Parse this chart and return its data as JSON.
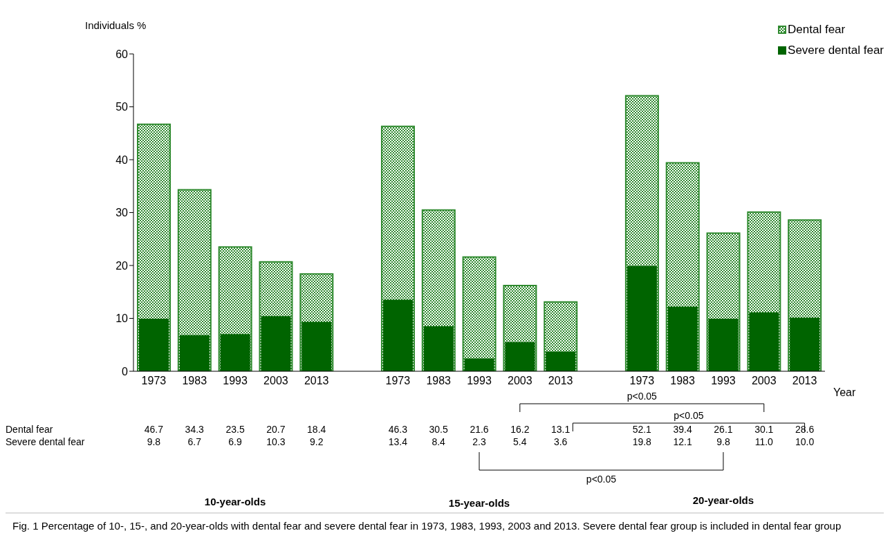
{
  "chart_data": {
    "type": "bar",
    "ylabel": "Individuals %",
    "xlabel": "Year",
    "categories": [
      "1973",
      "1983",
      "1993",
      "2003",
      "2013",
      null,
      "1973",
      "1983",
      "1993",
      "2003",
      "2013",
      null,
      "1973",
      "1983",
      "1993",
      "2003",
      "2013"
    ],
    "series": [
      {
        "name": "Dental fear",
        "color": "#2f8a2f",
        "values": [
          46.7,
          34.3,
          23.5,
          20.7,
          18.4,
          null,
          46.3,
          30.5,
          21.6,
          16.2,
          13.1,
          null,
          52.1,
          39.4,
          26.1,
          30.1,
          28.6
        ],
        "value_labels": [
          "46.7",
          "34.3",
          "23.5",
          "20.7",
          "18.4",
          null,
          "46.3",
          "30.5",
          "21.6",
          "16.2",
          "13.1",
          null,
          "52.1",
          "39.4",
          "26.1",
          "30.1",
          "28.6"
        ]
      },
      {
        "name": "Severe dental fear",
        "color": "#006400",
        "values": [
          9.8,
          6.7,
          6.9,
          10.3,
          9.2,
          null,
          13.4,
          8.4,
          2.3,
          5.4,
          3.6,
          null,
          19.8,
          12.1,
          9.8,
          11.0,
          10.0
        ],
        "value_labels": [
          "9.8",
          "6.7",
          "6.9",
          "10.3",
          "9.2",
          null,
          "13.4",
          "8.4",
          "2.3",
          "5.4",
          "3.6",
          null,
          "19.8",
          "12.1",
          "9.8",
          "11.0",
          "10.0"
        ]
      }
    ],
    "ylim": [
      0,
      60
    ],
    "yticks": [
      0,
      10,
      20,
      30,
      40,
      50,
      60
    ],
    "grid": false,
    "legend": "top right",
    "annotations": [
      "p<0.05",
      "p<0.05",
      "p<0.05",
      "10-year-olds",
      "15-year-olds",
      "20-year-olds",
      "Fig. 1  Percentage of 10-, 15-, and 20-year-olds with dental fear and severe dental fear in 1973, 1983, 1993, 2003 and 2013. Severe dental fear group is included in dental fear group"
    ]
  }
}
